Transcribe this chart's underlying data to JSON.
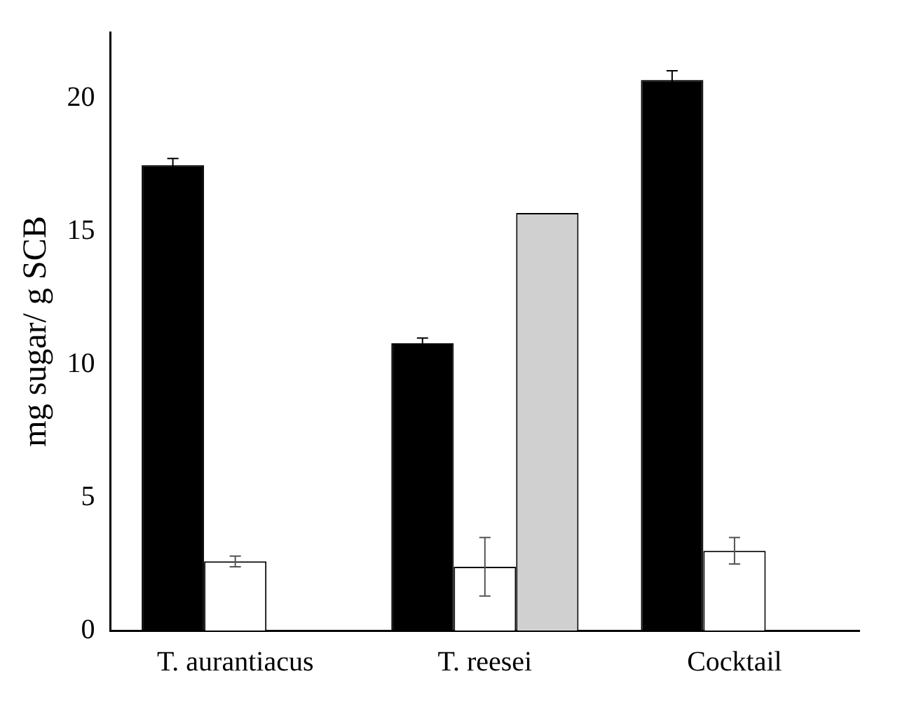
{
  "chart_data": {
    "type": "bar",
    "ylabel": "mg sugar/ g SCB",
    "categories": [
      "T. aurantiacus",
      "T. reesei",
      "Cocktail"
    ],
    "series": [
      {
        "color": "#000000",
        "values": [
          17.5,
          10.8,
          20.7
        ],
        "errors": [
          0.25,
          0.2,
          0.35
        ]
      },
      {
        "color": "#ffffff",
        "values": [
          2.6,
          2.4,
          3.0
        ],
        "errors": [
          0.2,
          1.1,
          0.5
        ]
      },
      {
        "color": "#d0d0d0",
        "values": [
          null,
          15.7,
          null
        ],
        "errors": [
          null,
          null,
          null
        ]
      }
    ],
    "ylim": [
      0,
      22.5
    ],
    "yticks": [
      0,
      5,
      10,
      15,
      20
    ],
    "grid": false,
    "legend": false
  }
}
